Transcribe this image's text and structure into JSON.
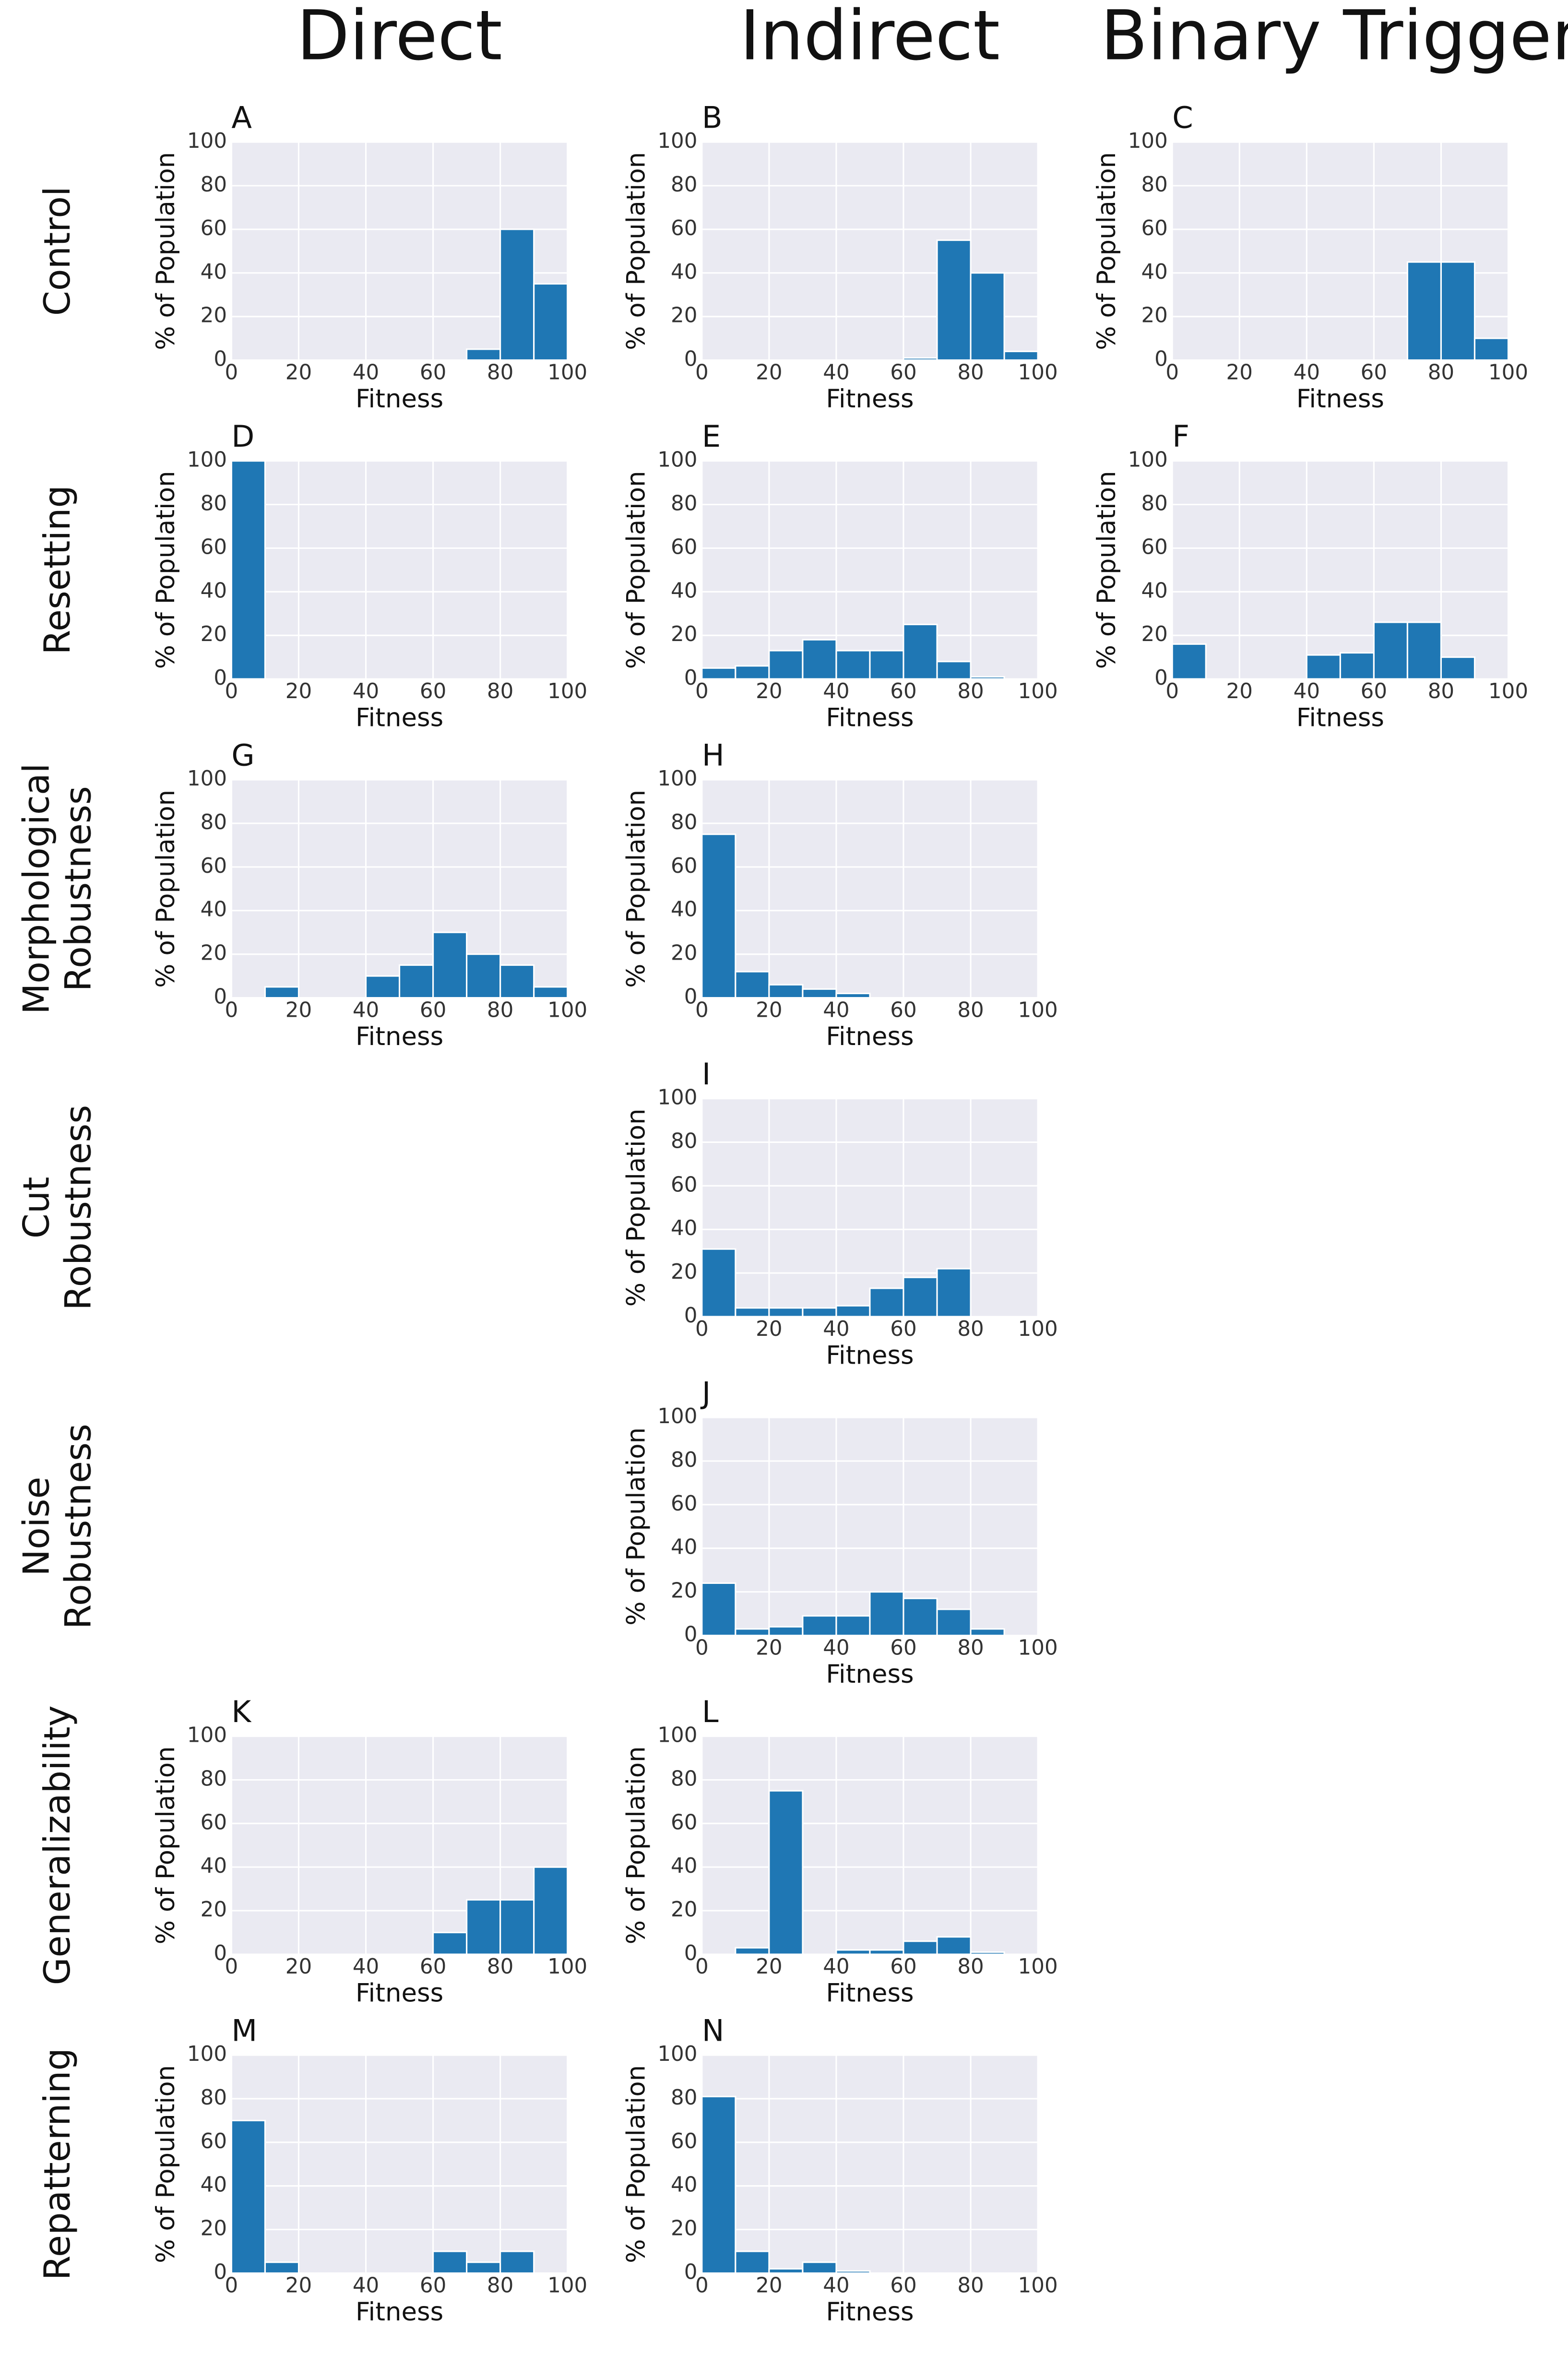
{
  "columns": [
    "Direct",
    "Indirect",
    "Binary Trigger"
  ],
  "rows": [
    [
      "Control"
    ],
    [
      "Resetting"
    ],
    [
      "Morphological",
      "Robustness"
    ],
    [
      "Cut",
      "Robustness"
    ],
    [
      "Noise",
      "Robustness"
    ],
    [
      "Generalizability"
    ],
    [
      "Repatterning"
    ]
  ],
  "chart_data": [
    {
      "type": "histogram",
      "title": "A",
      "bins": [
        0,
        10,
        20,
        30,
        40,
        50,
        60,
        70,
        80,
        90,
        100
      ],
      "values": [
        0,
        0,
        0,
        0,
        0,
        0,
        0,
        5,
        60,
        35
      ],
      "color": "#1f77b4",
      "xlim": [
        0,
        100
      ],
      "ylim": [
        0,
        100
      ],
      "xticks": [
        0,
        20,
        40,
        60,
        80,
        100
      ],
      "yticks": [
        0,
        20,
        40,
        60,
        80,
        100
      ],
      "xlabel": "Fitness",
      "ylabel": "% of Population",
      "grid": true
    },
    {
      "type": "histogram",
      "title": "B",
      "bins": [
        0,
        10,
        20,
        30,
        40,
        50,
        60,
        70,
        80,
        90,
        100
      ],
      "values": [
        0,
        0,
        0,
        0,
        0,
        0,
        1,
        55,
        40,
        4
      ],
      "color": "#1f77b4",
      "xlim": [
        0,
        100
      ],
      "ylim": [
        0,
        100
      ],
      "xticks": [
        0,
        20,
        40,
        60,
        80,
        100
      ],
      "yticks": [
        0,
        20,
        40,
        60,
        80,
        100
      ],
      "xlabel": "Fitness",
      "ylabel": "% of Population",
      "grid": true
    },
    {
      "type": "histogram",
      "title": "C",
      "bins": [
        0,
        10,
        20,
        30,
        40,
        50,
        60,
        70,
        80,
        90,
        100
      ],
      "values": [
        0,
        0,
        0,
        0,
        0,
        0,
        0,
        45,
        45,
        10
      ],
      "color": "#1f77b4",
      "xlim": [
        0,
        100
      ],
      "ylim": [
        0,
        100
      ],
      "xticks": [
        0,
        20,
        40,
        60,
        80,
        100
      ],
      "yticks": [
        0,
        20,
        40,
        60,
        80,
        100
      ],
      "xlabel": "Fitness",
      "ylabel": "% of Population",
      "grid": true
    },
    {
      "type": "histogram",
      "title": "D",
      "bins": [
        0,
        10,
        20,
        30,
        40,
        50,
        60,
        70,
        80,
        90,
        100
      ],
      "values": [
        100,
        0,
        0,
        0,
        0,
        0,
        0,
        0,
        0,
        0
      ],
      "color": "#1f77b4",
      "xlim": [
        0,
        100
      ],
      "ylim": [
        0,
        100
      ],
      "xticks": [
        0,
        20,
        40,
        60,
        80,
        100
      ],
      "yticks": [
        0,
        20,
        40,
        60,
        80,
        100
      ],
      "xlabel": "Fitness",
      "ylabel": "% of Population",
      "grid": true
    },
    {
      "type": "histogram",
      "title": "E",
      "bins": [
        0,
        10,
        20,
        30,
        40,
        50,
        60,
        70,
        80,
        90,
        100
      ],
      "values": [
        5,
        6,
        13,
        18,
        13,
        13,
        25,
        8,
        1,
        0
      ],
      "color": "#1f77b4",
      "xlim": [
        0,
        100
      ],
      "ylim": [
        0,
        100
      ],
      "xticks": [
        0,
        20,
        40,
        60,
        80,
        100
      ],
      "yticks": [
        0,
        20,
        40,
        60,
        80,
        100
      ],
      "xlabel": "Fitness",
      "ylabel": "% of Population",
      "grid": true
    },
    {
      "type": "histogram",
      "title": "F",
      "bins": [
        0,
        10,
        20,
        30,
        40,
        50,
        60,
        70,
        80,
        90,
        100
      ],
      "values": [
        16,
        0,
        0,
        0,
        11,
        12,
        26,
        26,
        10,
        0
      ],
      "color": "#1f77b4",
      "xlim": [
        0,
        100
      ],
      "ylim": [
        0,
        100
      ],
      "xticks": [
        0,
        20,
        40,
        60,
        80,
        100
      ],
      "yticks": [
        0,
        20,
        40,
        60,
        80,
        100
      ],
      "xlabel": "Fitness",
      "ylabel": "% of Population",
      "grid": true
    },
    {
      "type": "histogram",
      "title": "G",
      "bins": [
        0,
        10,
        20,
        30,
        40,
        50,
        60,
        70,
        80,
        90,
        100
      ],
      "values": [
        0,
        5,
        0,
        0,
        10,
        15,
        30,
        20,
        15,
        5
      ],
      "color": "#1f77b4",
      "xlim": [
        0,
        100
      ],
      "ylim": [
        0,
        100
      ],
      "xticks": [
        0,
        20,
        40,
        60,
        80,
        100
      ],
      "yticks": [
        0,
        20,
        40,
        60,
        80,
        100
      ],
      "xlabel": "Fitness",
      "ylabel": "% of Population",
      "grid": true
    },
    {
      "type": "histogram",
      "title": "H",
      "bins": [
        0,
        10,
        20,
        30,
        40,
        50,
        60,
        70,
        80,
        90,
        100
      ],
      "values": [
        75,
        12,
        6,
        4,
        2,
        0,
        0,
        0,
        0,
        0
      ],
      "color": "#1f77b4",
      "xlim": [
        0,
        100
      ],
      "ylim": [
        0,
        100
      ],
      "xticks": [
        0,
        20,
        40,
        60,
        80,
        100
      ],
      "yticks": [
        0,
        20,
        40,
        60,
        80,
        100
      ],
      "xlabel": "Fitness",
      "ylabel": "% of Population",
      "grid": true
    },
    {
      "type": "histogram",
      "title": "I",
      "bins": [
        0,
        10,
        20,
        30,
        40,
        50,
        60,
        70,
        80,
        90,
        100
      ],
      "values": [
        31,
        4,
        4,
        4,
        5,
        13,
        18,
        22,
        0,
        0
      ],
      "color": "#1f77b4",
      "xlim": [
        0,
        100
      ],
      "ylim": [
        0,
        100
      ],
      "xticks": [
        0,
        20,
        40,
        60,
        80,
        100
      ],
      "yticks": [
        0,
        20,
        40,
        60,
        80,
        100
      ],
      "xlabel": "Fitness",
      "ylabel": "% of Population",
      "grid": true
    },
    {
      "type": "histogram",
      "title": "J",
      "bins": [
        0,
        10,
        20,
        30,
        40,
        50,
        60,
        70,
        80,
        90,
        100
      ],
      "values": [
        24,
        3,
        4,
        9,
        9,
        20,
        17,
        12,
        3,
        0
      ],
      "color": "#1f77b4",
      "xlim": [
        0,
        100
      ],
      "ylim": [
        0,
        100
      ],
      "xticks": [
        0,
        20,
        40,
        60,
        80,
        100
      ],
      "yticks": [
        0,
        20,
        40,
        60,
        80,
        100
      ],
      "xlabel": "Fitness",
      "ylabel": "% of Population",
      "grid": true
    },
    {
      "type": "histogram",
      "title": "K",
      "bins": [
        0,
        10,
        20,
        30,
        40,
        50,
        60,
        70,
        80,
        90,
        100
      ],
      "values": [
        0,
        0,
        0,
        0,
        0,
        0,
        10,
        25,
        25,
        40
      ],
      "color": "#1f77b4",
      "xlim": [
        0,
        100
      ],
      "ylim": [
        0,
        100
      ],
      "xticks": [
        0,
        20,
        40,
        60,
        80,
        100
      ],
      "yticks": [
        0,
        20,
        40,
        60,
        80,
        100
      ],
      "xlabel": "Fitness",
      "ylabel": "% of Population",
      "grid": true
    },
    {
      "type": "histogram",
      "title": "L",
      "bins": [
        0,
        10,
        20,
        30,
        40,
        50,
        60,
        70,
        80,
        90,
        100
      ],
      "values": [
        0,
        3,
        75,
        0,
        2,
        2,
        6,
        8,
        1,
        0
      ],
      "color": "#1f77b4",
      "xlim": [
        0,
        100
      ],
      "ylim": [
        0,
        100
      ],
      "xticks": [
        0,
        20,
        40,
        60,
        80,
        100
      ],
      "yticks": [
        0,
        20,
        40,
        60,
        80,
        100
      ],
      "xlabel": "Fitness",
      "ylabel": "% of Population",
      "grid": true
    },
    {
      "type": "histogram",
      "title": "M",
      "bins": [
        0,
        10,
        20,
        30,
        40,
        50,
        60,
        70,
        80,
        90,
        100
      ],
      "values": [
        70,
        5,
        0,
        0,
        0,
        0,
        10,
        5,
        10,
        0
      ],
      "color": "#1f77b4",
      "xlim": [
        0,
        100
      ],
      "ylim": [
        0,
        100
      ],
      "xticks": [
        0,
        20,
        40,
        60,
        80,
        100
      ],
      "yticks": [
        0,
        20,
        40,
        60,
        80,
        100
      ],
      "xlabel": "Fitness",
      "ylabel": "% of Population",
      "grid": true
    },
    {
      "type": "histogram",
      "title": "N",
      "bins": [
        0,
        10,
        20,
        30,
        40,
        50,
        60,
        70,
        80,
        90,
        100
      ],
      "values": [
        81,
        10,
        2,
        5,
        1,
        0,
        0,
        0,
        0,
        0
      ],
      "color": "#1f77b4",
      "xlim": [
        0,
        100
      ],
      "ylim": [
        0,
        100
      ],
      "xticks": [
        0,
        20,
        40,
        60,
        80,
        100
      ],
      "yticks": [
        0,
        20,
        40,
        60,
        80,
        100
      ],
      "xlabel": "Fitness",
      "ylabel": "% of Population",
      "grid": true
    }
  ]
}
